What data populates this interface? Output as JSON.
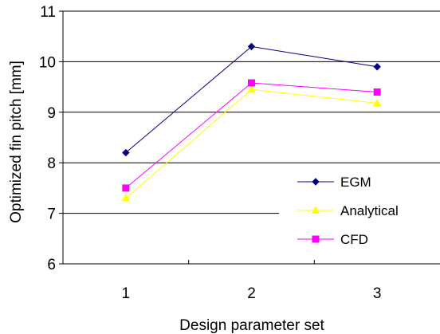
{
  "chart_data": {
    "type": "line",
    "title": "",
    "xlabel": "Design parameter set",
    "ylabel": "Optimized fin pitch [mm]",
    "categories": [
      "1",
      "2",
      "3"
    ],
    "ylim": [
      6,
      11
    ],
    "yticks": [
      6,
      7,
      8,
      9,
      10,
      11
    ],
    "grid": "horizontal",
    "legend_position": "right",
    "series": [
      {
        "name": "EGM",
        "values": [
          8.2,
          10.3,
          9.9
        ],
        "color": "#000080",
        "marker": "diamond"
      },
      {
        "name": "Analytical",
        "values": [
          7.3,
          9.45,
          9.18
        ],
        "color": "#ffff00",
        "marker": "triangle"
      },
      {
        "name": "CFD",
        "values": [
          7.5,
          9.58,
          9.4
        ],
        "color": "#ff00ff",
        "marker": "square"
      }
    ]
  }
}
